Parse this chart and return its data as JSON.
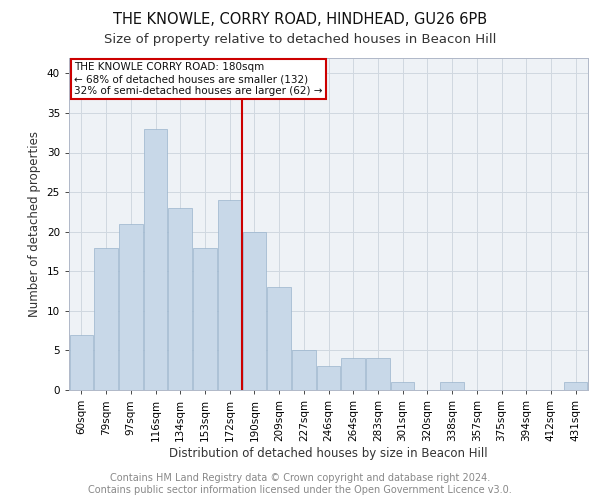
{
  "title1": "THE KNOWLE, CORRY ROAD, HINDHEAD, GU26 6PB",
  "title2": "Size of property relative to detached houses in Beacon Hill",
  "xlabel": "Distribution of detached houses by size in Beacon Hill",
  "ylabel": "Number of detached properties",
  "categories": [
    "60sqm",
    "79sqm",
    "97sqm",
    "116sqm",
    "134sqm",
    "153sqm",
    "172sqm",
    "190sqm",
    "209sqm",
    "227sqm",
    "246sqm",
    "264sqm",
    "283sqm",
    "301sqm",
    "320sqm",
    "338sqm",
    "357sqm",
    "375sqm",
    "394sqm",
    "412sqm",
    "431sqm"
  ],
  "values": [
    7,
    18,
    21,
    33,
    23,
    18,
    24,
    20,
    13,
    5,
    3,
    4,
    4,
    1,
    0,
    1,
    0,
    0,
    0,
    0,
    1
  ],
  "bar_color": "#c8d8e8",
  "bar_edge_color": "#9ab4cc",
  "vline_x_idx": 6.5,
  "vline_color": "#cc0000",
  "annotation_lines": [
    "THE KNOWLE CORRY ROAD: 180sqm",
    "← 68% of detached houses are smaller (132)",
    "32% of semi-detached houses are larger (62) →"
  ],
  "annotation_box_color": "#cc0000",
  "ylim": [
    0,
    42
  ],
  "yticks": [
    0,
    5,
    10,
    15,
    20,
    25,
    30,
    35,
    40
  ],
  "grid_color": "#d0d8e0",
  "background_color": "#eef2f6",
  "footer_line1": "Contains HM Land Registry data © Crown copyright and database right 2024.",
  "footer_line2": "Contains public sector information licensed under the Open Government Licence v3.0.",
  "title1_fontsize": 10.5,
  "title2_fontsize": 9.5,
  "xlabel_fontsize": 8.5,
  "ylabel_fontsize": 8.5,
  "tick_fontsize": 7.5,
  "footer_fontsize": 7,
  "annotation_fontsize": 7.5
}
